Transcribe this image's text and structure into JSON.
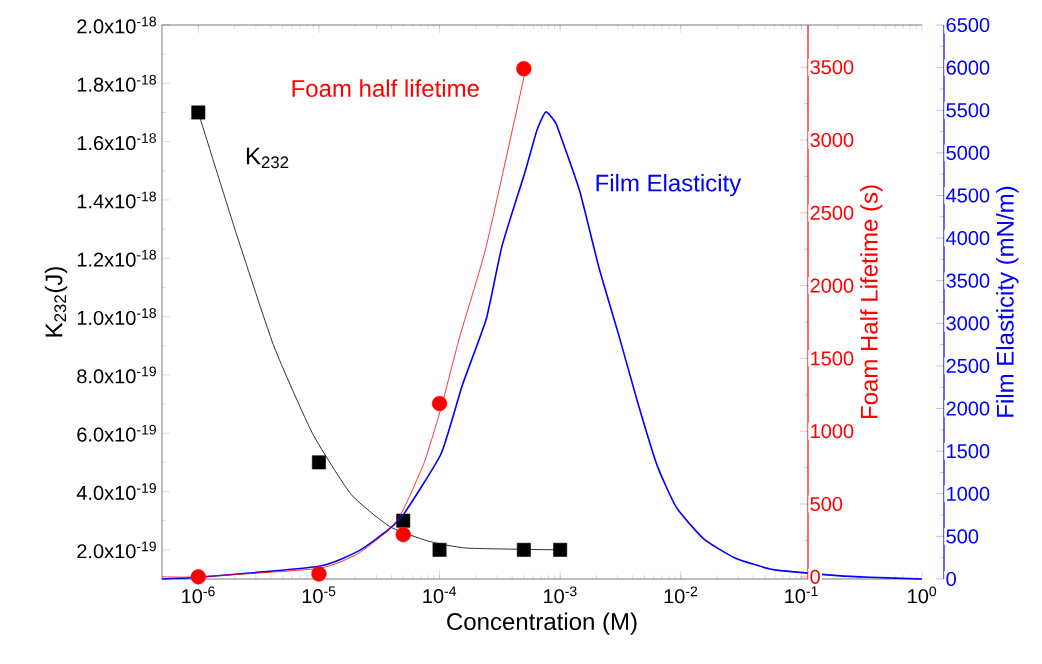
{
  "chart_data": {
    "type": "line",
    "xlabel": "Concentration (M)",
    "ylabel": "K$_{232}$(J)",
    "y2label": "Foam Half Lifetime (s)",
    "y3label": "Film Elasticity (mN/m)",
    "log": "x",
    "grid": false,
    "xlim": [
      5e-07,
      1
    ],
    "xticks": [
      {
        "value": 1e-06,
        "label": "10$^{-6}$"
      },
      {
        "value": 1e-05,
        "label": "10$^{-5}$"
      },
      {
        "value": 0.0001,
        "label": "10$^{-4}$"
      },
      {
        "value": 0.001,
        "label": "10$^{-3}$"
      },
      {
        "value": 0.01,
        "label": "10$^{-2}$"
      },
      {
        "value": 0.1,
        "label": "10$^{-1}$"
      },
      {
        "value": 1,
        "label": "10$^{0}$"
      }
    ],
    "ylim": [
      1e-19,
      2e-18
    ],
    "yticks": [
      {
        "value": 2e-19,
        "label": "2.0x10$^{-19}$"
      },
      {
        "value": 4e-19,
        "label": "4.0x10$^{-19}$"
      },
      {
        "value": 6e-19,
        "label": "6.0x10$^{-19}$"
      },
      {
        "value": 8e-19,
        "label": "8.0x10$^{-19}$"
      },
      {
        "value": 1e-18,
        "label": "1.0x10$^{-18}$"
      },
      {
        "value": 1.2e-18,
        "label": "1.2x10$^{-18}$"
      },
      {
        "value": 1.4e-18,
        "label": "1.4x10$^{-18}$"
      },
      {
        "value": 1.6e-18,
        "label": "1.6x10$^{-18}$"
      },
      {
        "value": 1.8e-18,
        "label": "1.8x10$^{-18}$"
      },
      {
        "value": 2e-18,
        "label": "2.0x10$^{-18}$"
      }
    ],
    "y2lim": [
      -15,
      3790
    ],
    "y2ticks": [
      0,
      500,
      1000,
      1500,
      2000,
      2500,
      3000,
      3500
    ],
    "y3lim": [
      0,
      6500
    ],
    "y3ticks": [
      0,
      500,
      1000,
      1500,
      2000,
      2500,
      3000,
      3500,
      4000,
      4500,
      5000,
      5500,
      6000,
      6500
    ],
    "series": [
      {
        "name": "K$_{232}$",
        "type": "scatter",
        "marker": "square",
        "color": "#000000",
        "x": [
          1e-06,
          1e-05,
          5e-05,
          0.0001,
          0.0005,
          0.001
        ],
        "values": [
          1.7e-18,
          5e-19,
          3e-19,
          2e-19,
          2e-19,
          2e-19
        ]
      },
      {
        "marker": "none",
        "color": "#000000",
        "x": [
          1e-06,
          2.01e-06,
          4.22e-06,
          8.83e-06,
          1.85e-05,
          3.86e-05,
          8.07e-05,
          0.000169,
          0.001
        ],
        "values": [
          1.7e-18,
          1.3e-18,
          9e-19,
          6e-19,
          3.9e-19,
          2.8e-19,
          2.3e-19,
          2.06e-19,
          2e-19
        ]
      },
      {
        "name": "Foam half lifetime",
        "type": "scatter",
        "marker": "circle",
        "axis": "y2",
        "color": "#ff0000",
        "x": [
          1e-06,
          1e-05,
          5e-05,
          0.0001,
          0.0005
        ],
        "values": [
          0,
          20,
          290,
          1190,
          3490
        ]
      },
      {
        "marker": "none",
        "axis": "y2",
        "color": "#ff0000",
        "x": [
          5e-07,
          1e-06,
          1e-05,
          2.1e-05,
          3.9e-05,
          5.1e-05,
          7.5e-05,
          0.000103,
          0.000146,
          0.000244,
          0.00051
        ],
        "values": [
          0,
          0,
          58,
          158,
          330,
          475,
          790,
          1160,
          1640,
          2270,
          3460
        ]
      },
      {
        "name": "Film Elasticity",
        "marker": "none",
        "axis": "y3",
        "color": "#0000ff",
        "x": [
          5e-07,
          1e-06,
          1e-05,
          2.14e-05,
          3.86e-05,
          5.1e-05,
          0.000103,
          0.000155,
          0.000244,
          0.00033,
          0.00051,
          0.00064,
          0.00076,
          0.00092,
          0.00108,
          0.00146,
          0.00211,
          0.00305,
          0.00442,
          0.00638,
          0.0092,
          0.0155,
          0.0279,
          0.0585,
          0.2,
          0.369,
          1
        ],
        "values": [
          0,
          20,
          150,
          330,
          590,
          770,
          1470,
          2280,
          3050,
          3910,
          4770,
          5260,
          5480,
          5350,
          5080,
          4540,
          3640,
          2870,
          2060,
          1330,
          840,
          470,
          250,
          110,
          40,
          20,
          0
        ]
      }
    ]
  }
}
